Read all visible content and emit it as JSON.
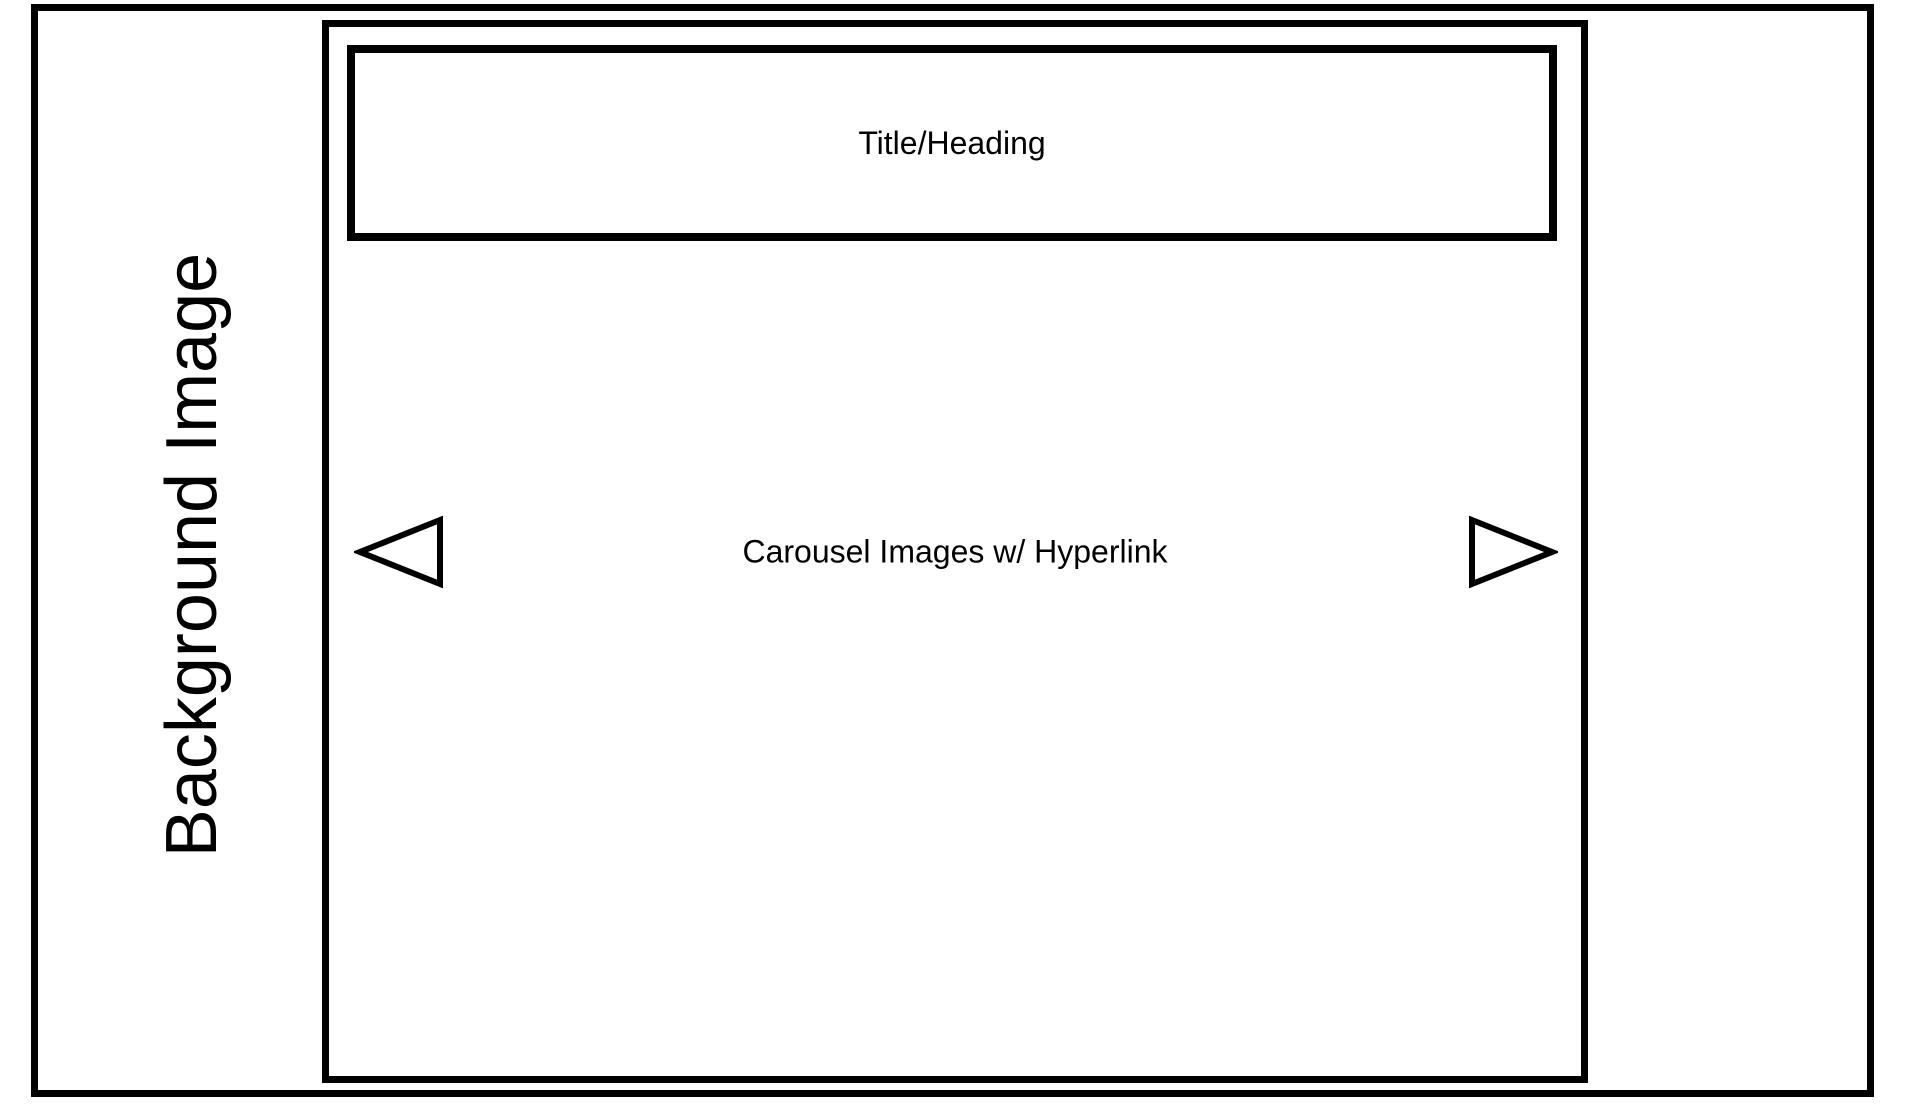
{
  "background": {
    "label": "Background Image"
  },
  "title_box": {
    "label": "Title/Heading"
  },
  "carousel": {
    "label": "Carousel Images w/ Hyperlink",
    "prev_icon": "triangle-left-icon",
    "next_icon": "triangle-right-icon"
  },
  "colors": {
    "stroke": "#000000",
    "fill": "#ffffff"
  }
}
